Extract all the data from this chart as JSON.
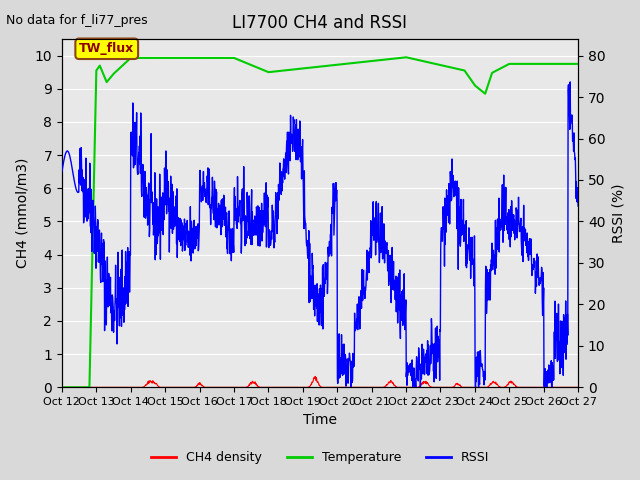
{
  "title": "LI7700 CH4 and RSSI",
  "annotation": "No data for f_li77_pres",
  "legend_box_label": "TW_flux",
  "xlabel": "Time",
  "ylabel_left": "CH4 (mmol/m3)",
  "ylabel_right": "RSSI (%)",
  "ylim_left": [
    0.0,
    10.5
  ],
  "ylim_right": [
    0,
    84
  ],
  "yticks_left": [
    0.0,
    1.0,
    2.0,
    3.0,
    4.0,
    5.0,
    6.0,
    7.0,
    8.0,
    9.0,
    10.0
  ],
  "yticks_right": [
    0,
    10,
    20,
    30,
    40,
    50,
    60,
    70,
    80
  ],
  "xtick_labels": [
    "Oct 12",
    "Oct 13",
    "Oct 14",
    "Oct 15",
    "Oct 16",
    "Oct 17",
    "Oct 18",
    "Oct 19",
    "Oct 20",
    "Oct 21",
    "Oct 22",
    "Oct 23",
    "Oct 24",
    "Oct 25",
    "Oct 26",
    "Oct 27"
  ],
  "background_color": "#d9d9d9",
  "plot_bg_color": "#e8e8e8",
  "ch4_color": "#ff0000",
  "temp_color": "#00cc00",
  "rssi_color": "#0000ff",
  "legend_box_color": "#ffff00",
  "legend_box_edge": "#8B4513"
}
